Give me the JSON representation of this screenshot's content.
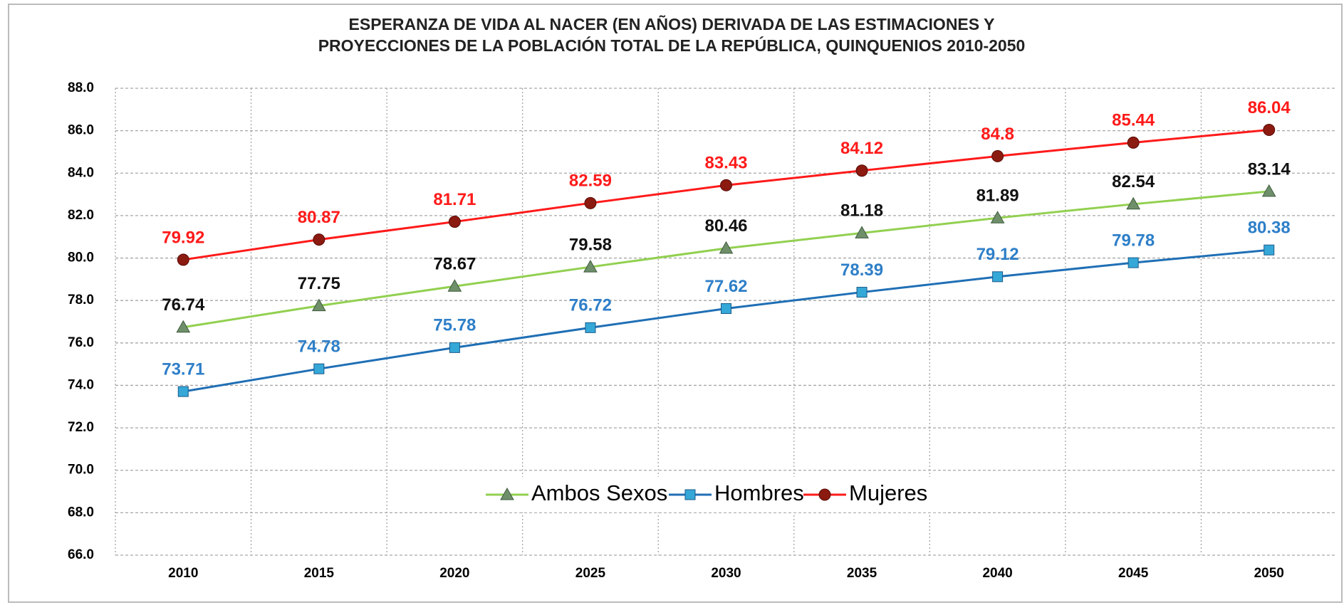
{
  "chart_data": {
    "type": "line",
    "title": [
      "ESPERANZA DE VIDA AL NACER (EN AÑOS) DERIVADA DE LAS ESTIMACIONES Y",
      "PROYECCIONES DE LA POBLACIÓN TOTAL DE LA REPÚBLICA, QUINQUENIOS 2010-2050"
    ],
    "x": [
      2010,
      2015,
      2020,
      2025,
      2030,
      2035,
      2040,
      2045,
      2050
    ],
    "xlim": [
      2007.5,
      2052.5
    ],
    "ylim": [
      66,
      88
    ],
    "yticks": [
      {
        "value": 66,
        "label": "66.0"
      },
      {
        "value": 68,
        "label": "68.0"
      },
      {
        "value": 70,
        "label": "70.0"
      },
      {
        "value": 72,
        "label": "72.0"
      },
      {
        "value": 74,
        "label": "74.0"
      },
      {
        "value": 76,
        "label": "76.0"
      },
      {
        "value": 78,
        "label": "78.0"
      },
      {
        "value": 80,
        "label": "80.0"
      },
      {
        "value": 82,
        "label": "82.0"
      },
      {
        "value": 84,
        "label": "84.0"
      },
      {
        "value": 86,
        "label": "86.0"
      },
      {
        "value": 88,
        "label": "88.0"
      }
    ],
    "grid": true,
    "legend": "bottom-center",
    "series": [
      {
        "name": "Ambos Sexos",
        "color": "#92d050",
        "marker": "triangle",
        "marker_color": "#6f8f6a",
        "label_color": "#111111",
        "values": [
          76.74,
          77.75,
          78.67,
          79.58,
          80.46,
          81.18,
          81.89,
          82.54,
          83.14
        ]
      },
      {
        "name": "Hombres",
        "color": "#1f6fb5",
        "marker": "square",
        "marker_color": "#35a8d8",
        "label_color": "#2e7fc8",
        "values": [
          73.71,
          74.78,
          75.78,
          76.72,
          77.62,
          78.39,
          79.12,
          79.78,
          80.38
        ]
      },
      {
        "name": "Mujeres",
        "color": "#ff1a1a",
        "marker": "circle",
        "marker_color": "#8b1a10",
        "label_color": "#ff1a1a",
        "values": [
          79.92,
          80.87,
          81.71,
          82.59,
          83.43,
          84.12,
          84.8,
          85.44,
          86.04
        ]
      }
    ]
  }
}
